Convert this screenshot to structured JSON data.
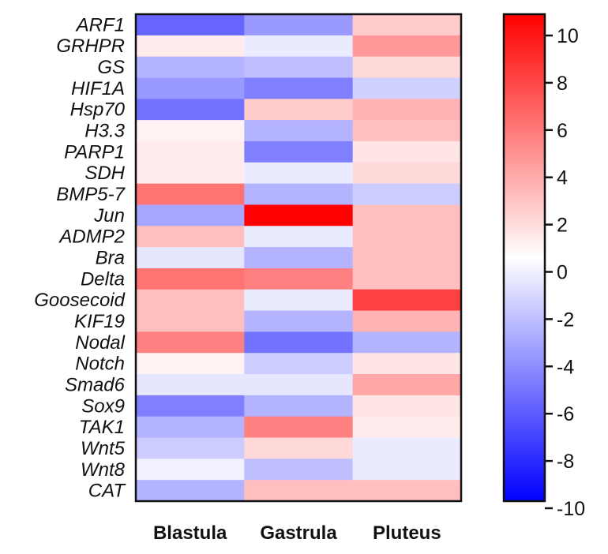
{
  "chart_data": {
    "type": "heatmap",
    "rows": [
      "ARF1",
      "GRHPR",
      "GS",
      "HIF1A",
      "Hsp70",
      "H3.3",
      "PARP1",
      "SDH",
      "BMP5-7",
      "Jun",
      "ADMP2",
      "Bra",
      "Delta",
      "Goosecoid",
      "KIF19",
      "Nodal",
      "Notch",
      "Smad6",
      "Sox9",
      "TAK1",
      "Wnt5",
      "Wnt8",
      "CAT"
    ],
    "columns": [
      "Blastula",
      "Gastrula",
      "Pluteus"
    ],
    "values": [
      [
        -6.0,
        -4.0,
        2.0
      ],
      [
        0.8,
        -0.8,
        4.0
      ],
      [
        -3.0,
        -2.5,
        1.5
      ],
      [
        -4.0,
        -5.0,
        -1.8
      ],
      [
        -5.5,
        2.0,
        3.0
      ],
      [
        0.5,
        -3.0,
        2.5
      ],
      [
        0.8,
        -5.0,
        1.0
      ],
      [
        0.8,
        -0.8,
        1.5
      ],
      [
        5.5,
        -3.0,
        -2.0
      ],
      [
        -3.5,
        10.5,
        2.5
      ],
      [
        2.5,
        -0.8,
        2.5
      ],
      [
        -1.0,
        -3.0,
        2.5
      ],
      [
        5.5,
        5.0,
        2.5
      ],
      [
        2.5,
        -0.8,
        7.5
      ],
      [
        2.5,
        -3.0,
        3.0
      ],
      [
        5.0,
        -5.5,
        -3.0
      ],
      [
        0.5,
        -2.0,
        1.0
      ],
      [
        -1.0,
        -1.0,
        3.5
      ],
      [
        -5.0,
        -3.0,
        1.0
      ],
      [
        -3.0,
        5.0,
        0.8
      ],
      [
        -2.0,
        1.5,
        -0.8
      ],
      [
        -0.5,
        -2.5,
        -0.8
      ],
      [
        -3.0,
        2.5,
        2.5
      ]
    ],
    "colorbar": {
      "min": -10,
      "max": 10,
      "ticks": [
        "10",
        "8",
        "6",
        "4",
        "2",
        "0",
        "-2",
        "-4",
        "-6",
        "-8",
        "-10"
      ],
      "low_color": "#0000ff",
      "mid_color": "#ffffff",
      "high_color": "#ff0000"
    }
  }
}
